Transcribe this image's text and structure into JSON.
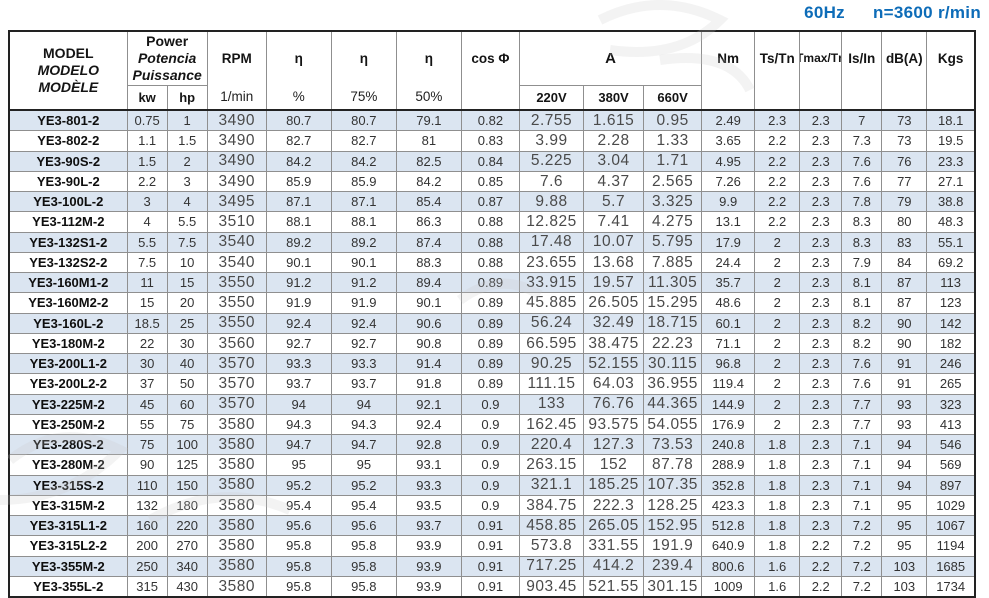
{
  "top_right": {
    "frequency": "60Hz",
    "speed": "n=3600 r/min",
    "accent_color": "#0d6cb8"
  },
  "table": {
    "header": {
      "model_lines": [
        "MODEL",
        "MODELO",
        "MODÈLE"
      ],
      "power": {
        "title_lines": [
          "Power",
          "Potencia",
          "Puissance"
        ],
        "units": [
          "kw",
          "hp"
        ]
      },
      "rpm": {
        "label": "RPM",
        "unit": "1/min"
      },
      "eta": {
        "symbol": "η",
        "loads": [
          "%",
          "75%",
          "50%"
        ]
      },
      "cos_phi": "cos Φ",
      "current": {
        "label": "A",
        "voltages": [
          "220V",
          "380V",
          "660V"
        ]
      },
      "torque": "Nm",
      "ts_tn": "Ts/Tn",
      "tmax_tn": "Tmax/Tn",
      "is_in": "Is/In",
      "noise": "dB(A)",
      "weight": "Kgs"
    },
    "alt_row_color": "#dbe5f1",
    "rows": [
      [
        "YE3-801-2",
        "0.75",
        "1",
        "3490",
        "80.7",
        "80.7",
        "79.1",
        "0.82",
        "2.755",
        "1.615",
        "0.95",
        "2.49",
        "2.3",
        "2.3",
        "7",
        "73",
        "18.1"
      ],
      [
        "YE3-802-2",
        "1.1",
        "1.5",
        "3490",
        "82.7",
        "82.7",
        "81",
        "0.83",
        "3.99",
        "2.28",
        "1.33",
        "3.65",
        "2.2",
        "2.3",
        "7.3",
        "73",
        "19.5"
      ],
      [
        "YE3-90S-2",
        "1.5",
        "2",
        "3490",
        "84.2",
        "84.2",
        "82.5",
        "0.84",
        "5.225",
        "3.04",
        "1.71",
        "4.95",
        "2.2",
        "2.3",
        "7.6",
        "76",
        "23.3"
      ],
      [
        "YE3-90L-2",
        "2.2",
        "3",
        "3490",
        "85.9",
        "85.9",
        "84.2",
        "0.85",
        "7.6",
        "4.37",
        "2.565",
        "7.26",
        "2.2",
        "2.3",
        "7.6",
        "77",
        "27.1"
      ],
      [
        "YE3-100L-2",
        "3",
        "4",
        "3495",
        "87.1",
        "87.1",
        "85.4",
        "0.87",
        "9.88",
        "5.7",
        "3.325",
        "9.9",
        "2.2",
        "2.3",
        "7.8",
        "79",
        "38.8"
      ],
      [
        "YE3-112M-2",
        "4",
        "5.5",
        "3510",
        "88.1",
        "88.1",
        "86.3",
        "0.88",
        "12.825",
        "7.41",
        "4.275",
        "13.1",
        "2.2",
        "2.3",
        "8.3",
        "80",
        "48.3"
      ],
      [
        "YE3-132S1-2",
        "5.5",
        "7.5",
        "3540",
        "89.2",
        "89.2",
        "87.4",
        "0.88",
        "17.48",
        "10.07",
        "5.795",
        "17.9",
        "2",
        "2.3",
        "8.3",
        "83",
        "55.1"
      ],
      [
        "YE3-132S2-2",
        "7.5",
        "10",
        "3540",
        "90.1",
        "90.1",
        "88.3",
        "0.88",
        "23.655",
        "13.68",
        "7.885",
        "24.4",
        "2",
        "2.3",
        "7.9",
        "84",
        "69.2"
      ],
      [
        "YE3-160M1-2",
        "11",
        "15",
        "3550",
        "91.2",
        "91.2",
        "89.4",
        "0.89",
        "33.915",
        "19.57",
        "11.305",
        "35.7",
        "2",
        "2.3",
        "8.1",
        "87",
        "113"
      ],
      [
        "YE3-160M2-2",
        "15",
        "20",
        "3550",
        "91.9",
        "91.9",
        "90.1",
        "0.89",
        "45.885",
        "26.505",
        "15.295",
        "48.6",
        "2",
        "2.3",
        "8.1",
        "87",
        "123"
      ],
      [
        "YE3-160L-2",
        "18.5",
        "25",
        "3550",
        "92.4",
        "92.4",
        "90.6",
        "0.89",
        "56.24",
        "32.49",
        "18.715",
        "60.1",
        "2",
        "2.3",
        "8.2",
        "90",
        "142"
      ],
      [
        "YE3-180M-2",
        "22",
        "30",
        "3560",
        "92.7",
        "92.7",
        "90.8",
        "0.89",
        "66.595",
        "38.475",
        "22.23",
        "71.1",
        "2",
        "2.3",
        "8.2",
        "90",
        "182"
      ],
      [
        "YE3-200L1-2",
        "30",
        "40",
        "3570",
        "93.3",
        "93.3",
        "91.4",
        "0.89",
        "90.25",
        "52.155",
        "30.115",
        "96.8",
        "2",
        "2.3",
        "7.6",
        "91",
        "246"
      ],
      [
        "YE3-200L2-2",
        "37",
        "50",
        "3570",
        "93.7",
        "93.7",
        "91.8",
        "0.89",
        "111.15",
        "64.03",
        "36.955",
        "119.4",
        "2",
        "2.3",
        "7.6",
        "91",
        "265"
      ],
      [
        "YE3-225M-2",
        "45",
        "60",
        "3570",
        "94",
        "94",
        "92.1",
        "0.9",
        "133",
        "76.76",
        "44.365",
        "144.9",
        "2",
        "2.3",
        "7.7",
        "93",
        "323"
      ],
      [
        "YE3-250M-2",
        "55",
        "75",
        "3580",
        "94.3",
        "94.3",
        "92.4",
        "0.9",
        "162.45",
        "93.575",
        "54.055",
        "176.9",
        "2",
        "2.3",
        "7.7",
        "93",
        "413"
      ],
      [
        "YE3-280S-2",
        "75",
        "100",
        "3580",
        "94.7",
        "94.7",
        "92.8",
        "0.9",
        "220.4",
        "127.3",
        "73.53",
        "240.8",
        "1.8",
        "2.3",
        "7.1",
        "94",
        "546"
      ],
      [
        "YE3-280M-2",
        "90",
        "125",
        "3580",
        "95",
        "95",
        "93.1",
        "0.9",
        "263.15",
        "152",
        "87.78",
        "288.9",
        "1.8",
        "2.3",
        "7.1",
        "94",
        "569"
      ],
      [
        "YE3-315S-2",
        "110",
        "150",
        "3580",
        "95.2",
        "95.2",
        "93.3",
        "0.9",
        "321.1",
        "185.25",
        "107.35",
        "352.8",
        "1.8",
        "2.3",
        "7.1",
        "94",
        "897"
      ],
      [
        "YE3-315M-2",
        "132",
        "180",
        "3580",
        "95.4",
        "95.4",
        "93.5",
        "0.9",
        "384.75",
        "222.3",
        "128.25",
        "423.3",
        "1.8",
        "2.3",
        "7.1",
        "95",
        "1029"
      ],
      [
        "YE3-315L1-2",
        "160",
        "220",
        "3580",
        "95.6",
        "95.6",
        "93.7",
        "0.91",
        "458.85",
        "265.05",
        "152.95",
        "512.8",
        "1.8",
        "2.3",
        "7.2",
        "95",
        "1067"
      ],
      [
        "YE3-315L2-2",
        "200",
        "270",
        "3580",
        "95.8",
        "95.8",
        "93.9",
        "0.91",
        "573.8",
        "331.55",
        "191.9",
        "640.9",
        "1.8",
        "2.2",
        "7.2",
        "95",
        "1194"
      ],
      [
        "YE3-355M-2",
        "250",
        "340",
        "3580",
        "95.8",
        "95.8",
        "93.9",
        "0.91",
        "717.25",
        "414.2",
        "239.4",
        "800.6",
        "1.6",
        "2.2",
        "7.2",
        "103",
        "1685"
      ],
      [
        "YE3-355L-2",
        "315",
        "430",
        "3580",
        "95.8",
        "95.8",
        "93.9",
        "0.91",
        "903.45",
        "521.55",
        "301.15",
        "1009",
        "1.6",
        "2.2",
        "7.2",
        "103",
        "1734"
      ]
    ]
  }
}
